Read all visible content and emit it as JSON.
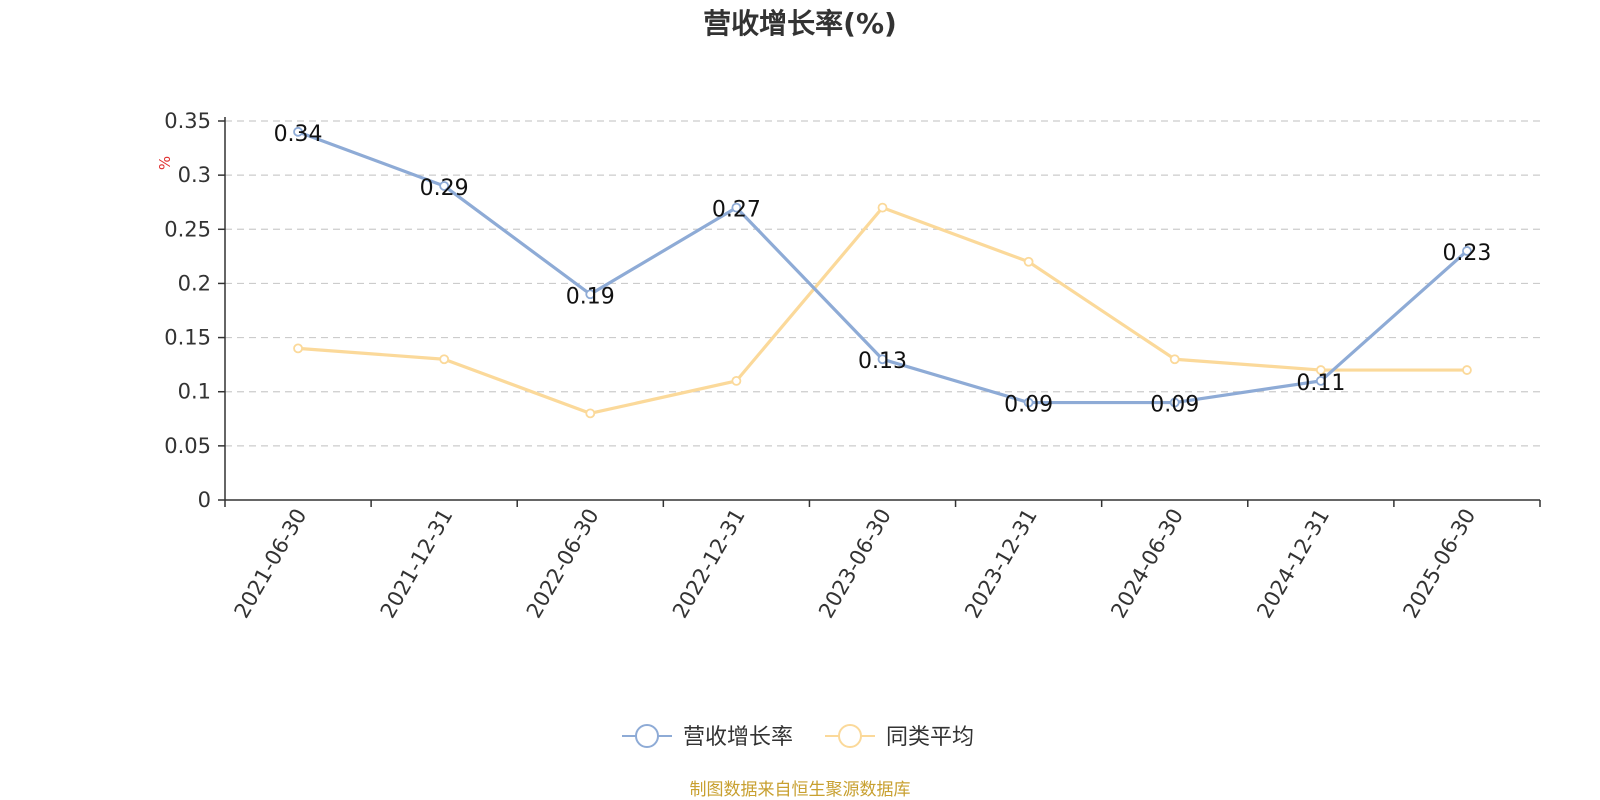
{
  "chart_data": {
    "type": "line",
    "title": "营收增长率(%)",
    "ylabel": "%",
    "categories": [
      "2021-06-30",
      "2021-12-31",
      "2022-06-30",
      "2022-12-31",
      "2023-06-30",
      "2023-12-31",
      "2024-06-30",
      "2024-12-31",
      "2025-06-30"
    ],
    "ylim": [
      0,
      0.35
    ],
    "yticks": [
      "0",
      "0.05",
      "0.1",
      "0.15",
      "0.2",
      "0.25",
      "0.3",
      "0.35"
    ],
    "grid": true,
    "legend_position": "bottom",
    "series": [
      {
        "name": "营收增长率",
        "color": "#8eabd6",
        "values": [
          0.34,
          0.29,
          0.19,
          0.27,
          0.13,
          0.09,
          0.09,
          0.11,
          0.23
        ],
        "labels": [
          "0.34",
          "0.29",
          "0.19",
          "0.27",
          "0.13",
          "0.09",
          "0.09",
          "0.11",
          "0.23"
        ]
      },
      {
        "name": "同类平均",
        "color": "#fbd99a",
        "values": [
          0.14,
          0.13,
          0.08,
          0.11,
          0.27,
          0.22,
          0.13,
          0.12,
          0.12
        ]
      }
    ]
  },
  "source": "制图数据来自恒生聚源数据库"
}
